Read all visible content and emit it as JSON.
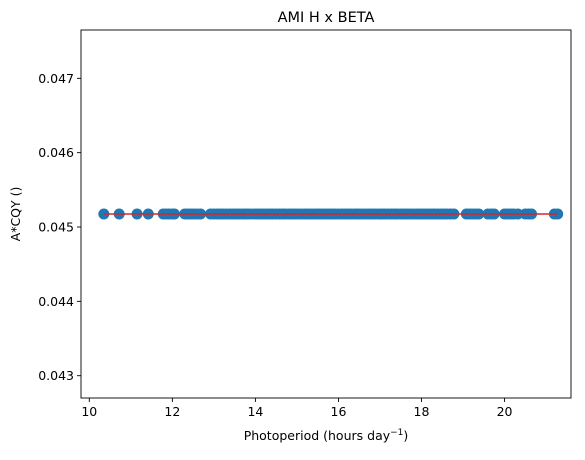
{
  "chart_data": {
    "type": "scatter",
    "title": "AMI H x BETA",
    "xlabel": "Photoperiod (hours day",
    "xlabel_sup": "−1",
    "xlabel_end": ")",
    "ylabel": "A*CQY ()",
    "xlim": [
      9.8,
      21.6
    ],
    "ylim": [
      0.0427,
      0.04765
    ],
    "xticks": [
      10,
      12,
      14,
      16,
      18,
      20
    ],
    "yticks": [
      0.043,
      0.044,
      0.045,
      0.046,
      0.047
    ],
    "ytick_labels": [
      "0.043",
      "0.044",
      "0.045",
      "0.046",
      "0.047"
    ],
    "grid": false,
    "series": [
      {
        "marker_color": "#1f77b4",
        "y_constant": 0.045175,
        "x": [
          10.35,
          10.72,
          11.15,
          11.42,
          11.78,
          11.85,
          11.92,
          12.0,
          12.05,
          12.3,
          12.38,
          12.45,
          12.52,
          12.6,
          12.68,
          12.92,
          13.0,
          13.08,
          13.15,
          13.22,
          13.3,
          13.38,
          13.45,
          13.52,
          13.6,
          13.68,
          13.75,
          13.82,
          13.9,
          13.98,
          14.05,
          14.12,
          14.2,
          14.28,
          14.35,
          14.42,
          14.5,
          14.58,
          14.65,
          14.72,
          14.8,
          14.88,
          14.95,
          15.02,
          15.1,
          15.18,
          15.25,
          15.32,
          15.4,
          15.48,
          15.55,
          15.62,
          15.7,
          15.78,
          15.85,
          15.92,
          16.0,
          16.08,
          16.15,
          16.22,
          16.3,
          16.38,
          16.45,
          16.52,
          16.6,
          16.68,
          16.75,
          16.82,
          16.9,
          16.98,
          17.05,
          17.12,
          17.2,
          17.28,
          17.35,
          17.42,
          17.5,
          17.58,
          17.65,
          17.72,
          17.8,
          17.88,
          17.95,
          18.02,
          18.1,
          18.18,
          18.25,
          18.32,
          18.4,
          18.48,
          18.55,
          18.62,
          18.7,
          18.78,
          19.08,
          19.15,
          19.22,
          19.3,
          19.38,
          19.6,
          19.68,
          19.75,
          20.0,
          20.08,
          20.15,
          20.22,
          20.32,
          20.5,
          20.58,
          20.65,
          21.2,
          21.28
        ]
      }
    ],
    "fit_line": {
      "color": "#d62728",
      "x": [
        10.35,
        21.28
      ],
      "y": [
        0.045175,
        0.045175
      ]
    }
  }
}
